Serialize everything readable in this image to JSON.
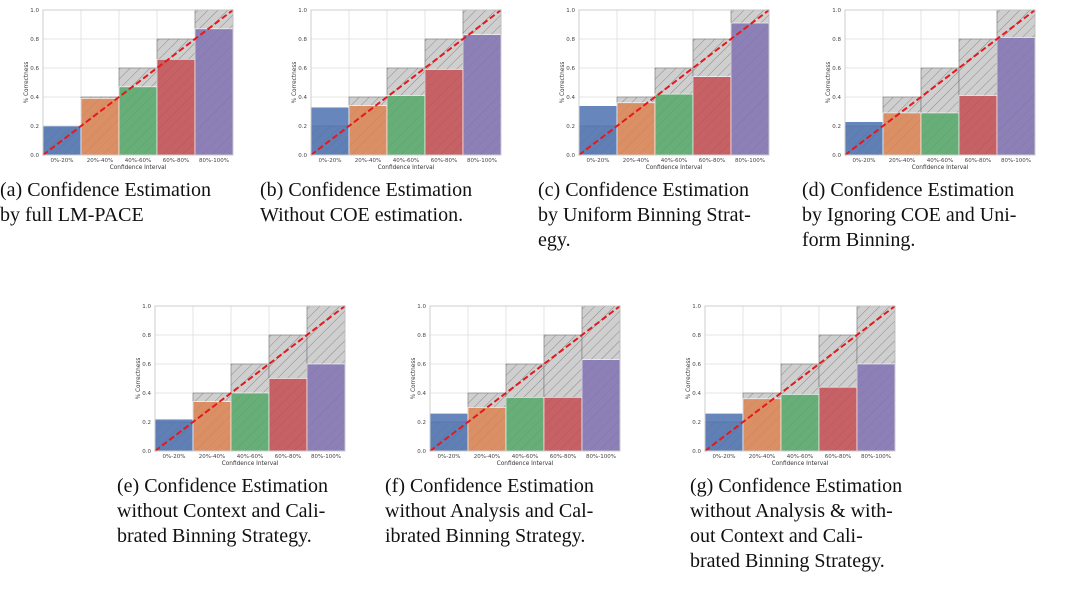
{
  "chart_data": [
    {
      "type": "bar",
      "id": "a",
      "caption_label": "(a)",
      "caption_lines": [
        "Confidence Estimation",
        "by full LM-PACE"
      ],
      "categories": [
        "0%-20%",
        "20%-40%",
        "40%-60%",
        "60%-80%",
        "80%-100%"
      ],
      "values": [
        0.2,
        0.39,
        0.47,
        0.66,
        0.87
      ],
      "ideal": [
        0.2,
        0.4,
        0.6,
        0.8,
        1.0
      ],
      "xlabel": "Confidence Interval",
      "ylabel": "% Correctness",
      "ylim": [
        0,
        1.0
      ],
      "yticks": [
        "0.0",
        "0.2",
        "0.4",
        "0.6",
        "0.8",
        "1.0"
      ],
      "grid": true
    },
    {
      "type": "bar",
      "id": "b",
      "caption_label": "(b)",
      "caption_lines": [
        "Confidence Estimation",
        "Without COE estimation."
      ],
      "categories": [
        "0%-20%",
        "20%-40%",
        "40%-60%",
        "60%-80%",
        "80%-100%"
      ],
      "values": [
        0.33,
        0.34,
        0.41,
        0.59,
        0.83
      ],
      "ideal": [
        0.2,
        0.4,
        0.6,
        0.8,
        1.0
      ],
      "xlabel": "Confidence Interval",
      "ylabel": "% Correctness",
      "ylim": [
        0,
        1.0
      ],
      "yticks": [
        "0.0",
        "0.2",
        "0.4",
        "0.6",
        "0.8",
        "1.0"
      ],
      "grid": true
    },
    {
      "type": "bar",
      "id": "c",
      "caption_label": "(c)",
      "caption_lines": [
        "Confidence Estimation",
        "by Uniform Binning Strat-",
        "egy."
      ],
      "categories": [
        "0%-20%",
        "20%-40%",
        "40%-60%",
        "60%-80%",
        "80%-100%"
      ],
      "values": [
        0.34,
        0.36,
        0.42,
        0.54,
        0.91
      ],
      "ideal": [
        0.2,
        0.4,
        0.6,
        0.8,
        1.0
      ],
      "xlabel": "Confidence Interval",
      "ylabel": "% Correctness",
      "ylim": [
        0,
        1.0
      ],
      "yticks": [
        "0.0",
        "0.2",
        "0.4",
        "0.6",
        "0.8",
        "1.0"
      ],
      "grid": true
    },
    {
      "type": "bar",
      "id": "d",
      "caption_label": "(d)",
      "caption_lines": [
        "Confidence Estimation",
        "by Ignoring COE and Uni-",
        "form Binning."
      ],
      "categories": [
        "0%-20%",
        "20%-40%",
        "40%-60%",
        "60%-80%",
        "80%-100%"
      ],
      "values": [
        0.23,
        0.29,
        0.29,
        0.41,
        0.81
      ],
      "ideal": [
        0.2,
        0.4,
        0.6,
        0.8,
        1.0
      ],
      "xlabel": "Confidence Interval",
      "ylabel": "% Correctness",
      "ylim": [
        0,
        1.0
      ],
      "yticks": [
        "0.0",
        "0.2",
        "0.4",
        "0.6",
        "0.8",
        "1.0"
      ],
      "grid": true
    },
    {
      "type": "bar",
      "id": "e",
      "caption_label": "(e)",
      "caption_lines": [
        "Confidence Estimation",
        "without Context and Cali-",
        "brated Binning Strategy."
      ],
      "categories": [
        "0%-20%",
        "20%-40%",
        "40%-60%",
        "60%-80%",
        "80%-100%"
      ],
      "values": [
        0.22,
        0.34,
        0.4,
        0.5,
        0.6
      ],
      "ideal": [
        0.2,
        0.4,
        0.6,
        0.8,
        1.0
      ],
      "xlabel": "Confidence Interval",
      "ylabel": "% Correctness",
      "ylim": [
        0,
        1.0
      ],
      "yticks": [
        "0.0",
        "0.2",
        "0.4",
        "0.6",
        "0.8",
        "1.0"
      ],
      "grid": true
    },
    {
      "type": "bar",
      "id": "f",
      "caption_label": "(f)",
      "caption_lines": [
        "Confidence Estimation",
        "without Analysis and Cal-",
        "ibrated Binning Strategy."
      ],
      "categories": [
        "0%-20%",
        "20%-40%",
        "40%-60%",
        "60%-80%",
        "80%-100%"
      ],
      "values": [
        0.26,
        0.3,
        0.37,
        0.37,
        0.63
      ],
      "ideal": [
        0.2,
        0.4,
        0.6,
        0.8,
        1.0
      ],
      "xlabel": "Confidence Interval",
      "ylabel": "% Correctness",
      "ylim": [
        0,
        1.0
      ],
      "yticks": [
        "0.0",
        "0.2",
        "0.4",
        "0.6",
        "0.8",
        "1.0"
      ],
      "grid": true
    },
    {
      "type": "bar",
      "id": "g",
      "caption_label": "(g)",
      "caption_lines": [
        "Confidence Estimation",
        "without Analysis & with-",
        "out Context and Cali-",
        "brated Binning Strategy."
      ],
      "categories": [
        "0%-20%",
        "20%-40%",
        "40%-60%",
        "60%-80%",
        "80%-100%"
      ],
      "values": [
        0.26,
        0.36,
        0.39,
        0.44,
        0.6
      ],
      "ideal": [
        0.2,
        0.4,
        0.6,
        0.8,
        1.0
      ],
      "xlabel": "Confidence Interval",
      "ylabel": "% Correctness",
      "ylim": [
        0,
        1.0
      ],
      "yticks": [
        "0.0",
        "0.2",
        "0.4",
        "0.6",
        "0.8",
        "1.0"
      ],
      "grid": true
    }
  ],
  "colors": {
    "bars": [
      "#4c72b0",
      "#dd8452",
      "#55a868",
      "#c44e52",
      "#8172b3"
    ],
    "diagonal": "#e3191c",
    "grid": "#dddddd",
    "ideal_fill": "#cfcfcf",
    "ideal_edge": "#777777"
  }
}
